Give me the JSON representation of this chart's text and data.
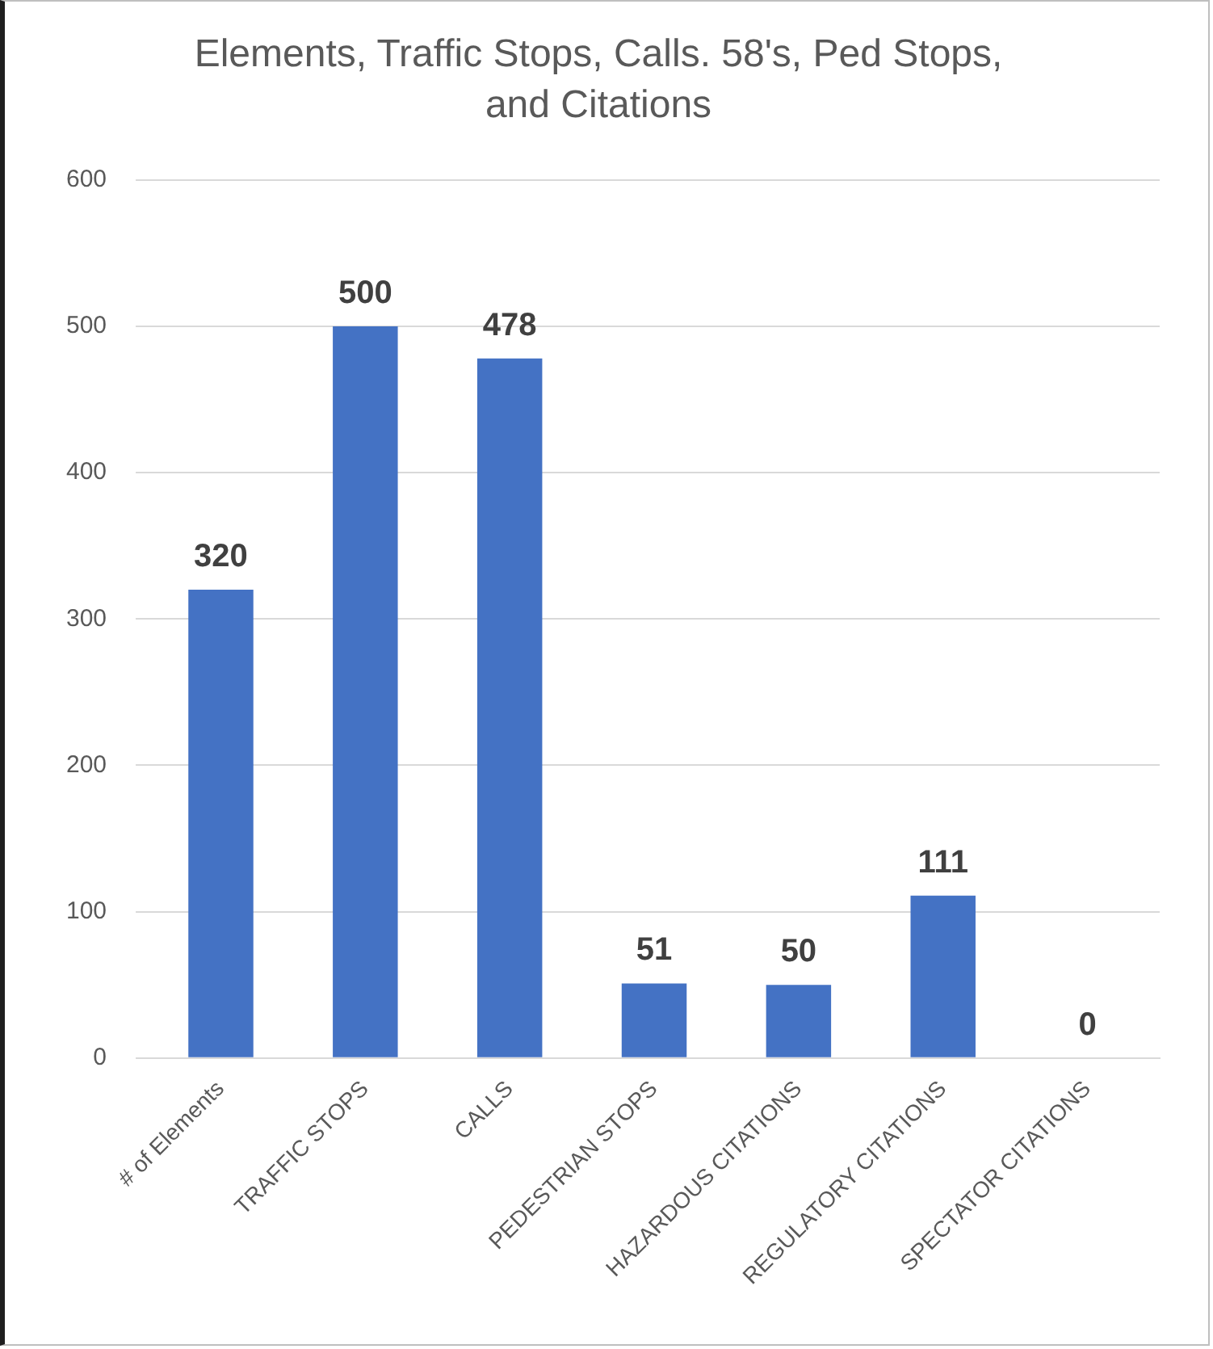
{
  "chart_data": {
    "type": "bar",
    "title": [
      "Elements, Traffic Stops, Calls. 58's, Ped Stops,",
      "and Citations"
    ],
    "categories": [
      "# of Elements",
      "TRAFFIC STOPS",
      "CALLS",
      "PEDESTRIAN STOPS",
      "HAZARDOUS CITATIONS",
      "REGULATORY CITATIONS",
      "SPECTATOR CITATIONS"
    ],
    "values": [
      320,
      500,
      478,
      51,
      50,
      111,
      0
    ],
    "color": "#4472c4",
    "ylim": [
      0,
      600
    ],
    "yticks": [
      0,
      100,
      200,
      300,
      400,
      500,
      600
    ],
    "grid": "y",
    "data_labels": true,
    "legend": false
  }
}
